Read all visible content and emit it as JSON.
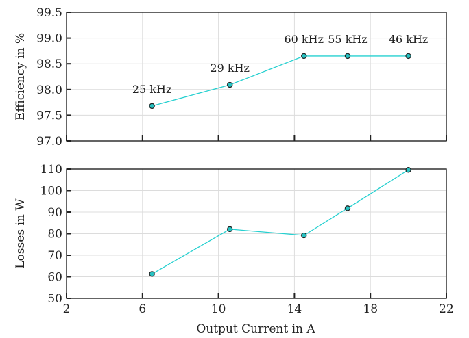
{
  "chart_data": {
    "type": "line",
    "xlabel": "Output Current in A",
    "xlim": [
      2,
      22
    ],
    "xticks": [
      2,
      6,
      10,
      14,
      18,
      22
    ],
    "colors": {
      "series": "#26d0d0",
      "marker_fill": "#26c2c2",
      "marker_edge": "#222222"
    },
    "panels": [
      {
        "ylabel": "Efficiency in %",
        "ylim": [
          97.0,
          99.5
        ],
        "yticks": [
          "97.0",
          "97.5",
          "98.0",
          "98.5",
          "99.0",
          "99.5"
        ],
        "grid": true,
        "series": [
          {
            "x": [
              6.5,
              10.6,
              14.5,
              16.8,
              20.0
            ],
            "y": [
              97.68,
              98.09,
              98.65,
              98.65,
              98.65
            ]
          }
        ],
        "annotations": [
          "25 kHz",
          "29 kHz",
          "60 kHz",
          "55 kHz",
          "46 kHz"
        ]
      },
      {
        "ylabel": "Losses in W",
        "ylim": [
          50,
          110
        ],
        "yticks": [
          "50",
          "60",
          "70",
          "80",
          "90",
          "100",
          "110"
        ],
        "grid": true,
        "series": [
          {
            "x": [
              6.5,
              10.6,
              14.5,
              16.8,
              20.0
            ],
            "y": [
              61.3,
              82.1,
              79.2,
              91.8,
              109.6
            ]
          }
        ]
      }
    ]
  }
}
